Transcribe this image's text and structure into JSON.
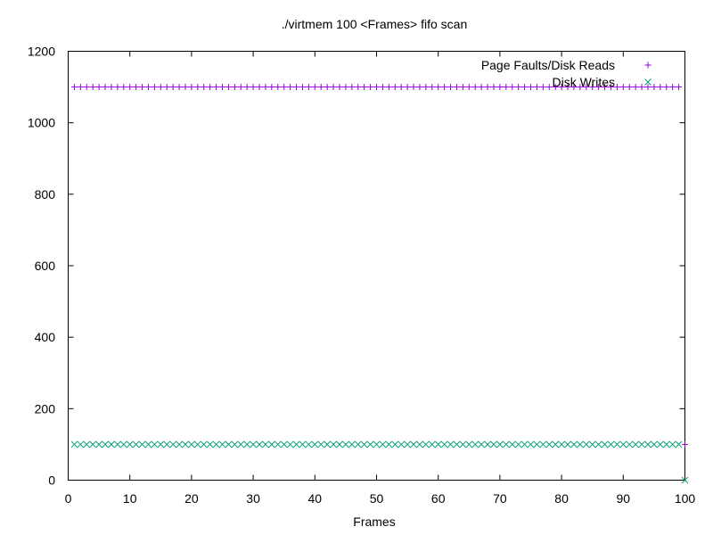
{
  "chart_data": {
    "type": "scatter",
    "title": "./virtmem 100 <Frames> fifo scan",
    "xlabel": "Frames",
    "ylabel": "",
    "xlim": [
      0,
      100
    ],
    "ylim": [
      0,
      1200
    ],
    "xticks": [
      0,
      10,
      20,
      30,
      40,
      50,
      60,
      70,
      80,
      90,
      100
    ],
    "yticks": [
      0,
      200,
      400,
      600,
      800,
      1000,
      1200
    ],
    "grid": false,
    "legend_position": "top-right",
    "x": [
      1,
      2,
      3,
      4,
      5,
      6,
      7,
      8,
      9,
      10,
      11,
      12,
      13,
      14,
      15,
      16,
      17,
      18,
      19,
      20,
      21,
      22,
      23,
      24,
      25,
      26,
      27,
      28,
      29,
      30,
      31,
      32,
      33,
      34,
      35,
      36,
      37,
      38,
      39,
      40,
      41,
      42,
      43,
      44,
      45,
      46,
      47,
      48,
      49,
      50,
      51,
      52,
      53,
      54,
      55,
      56,
      57,
      58,
      59,
      60,
      61,
      62,
      63,
      64,
      65,
      66,
      67,
      68,
      69,
      70,
      71,
      72,
      73,
      74,
      75,
      76,
      77,
      78,
      79,
      80,
      81,
      82,
      83,
      84,
      85,
      86,
      87,
      88,
      89,
      90,
      91,
      92,
      93,
      94,
      95,
      96,
      97,
      98,
      99,
      100
    ],
    "series": [
      {
        "name": "Page Faults/Disk Reads",
        "marker": "plus",
        "color": "#9400d3",
        "values": [
          1100,
          1100,
          1100,
          1100,
          1100,
          1100,
          1100,
          1100,
          1100,
          1100,
          1100,
          1100,
          1100,
          1100,
          1100,
          1100,
          1100,
          1100,
          1100,
          1100,
          1100,
          1100,
          1100,
          1100,
          1100,
          1100,
          1100,
          1100,
          1100,
          1100,
          1100,
          1100,
          1100,
          1100,
          1100,
          1100,
          1100,
          1100,
          1100,
          1100,
          1100,
          1100,
          1100,
          1100,
          1100,
          1100,
          1100,
          1100,
          1100,
          1100,
          1100,
          1100,
          1100,
          1100,
          1100,
          1100,
          1100,
          1100,
          1100,
          1100,
          1100,
          1100,
          1100,
          1100,
          1100,
          1100,
          1100,
          1100,
          1100,
          1100,
          1100,
          1100,
          1100,
          1100,
          1100,
          1100,
          1100,
          1100,
          1100,
          1100,
          1100,
          1100,
          1100,
          1100,
          1100,
          1100,
          1100,
          1100,
          1100,
          1100,
          1100,
          1100,
          1100,
          1100,
          1100,
          1100,
          1100,
          1100,
          1100,
          100
        ]
      },
      {
        "name": "Disk Writes",
        "marker": "cross",
        "color": "#009e73",
        "values": [
          100,
          100,
          100,
          100,
          100,
          100,
          100,
          100,
          100,
          100,
          100,
          100,
          100,
          100,
          100,
          100,
          100,
          100,
          100,
          100,
          100,
          100,
          100,
          100,
          100,
          100,
          100,
          100,
          100,
          100,
          100,
          100,
          100,
          100,
          100,
          100,
          100,
          100,
          100,
          100,
          100,
          100,
          100,
          100,
          100,
          100,
          100,
          100,
          100,
          100,
          100,
          100,
          100,
          100,
          100,
          100,
          100,
          100,
          100,
          100,
          100,
          100,
          100,
          100,
          100,
          100,
          100,
          100,
          100,
          100,
          100,
          100,
          100,
          100,
          100,
          100,
          100,
          100,
          100,
          100,
          100,
          100,
          100,
          100,
          100,
          100,
          100,
          100,
          100,
          100,
          100,
          100,
          100,
          100,
          100,
          100,
          100,
          100,
          100,
          0
        ]
      }
    ]
  }
}
